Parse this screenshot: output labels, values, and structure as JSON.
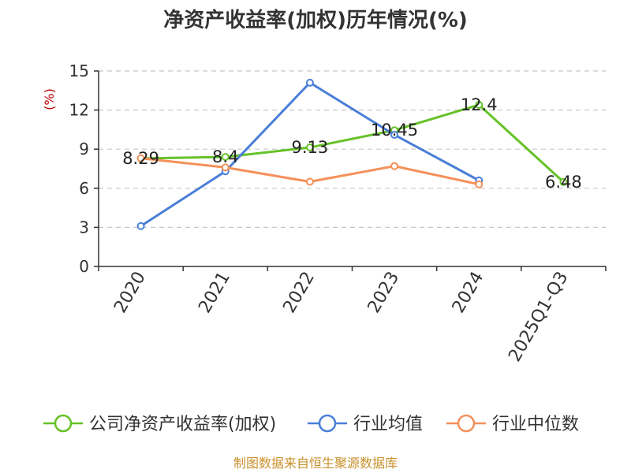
{
  "chart_data": {
    "type": "line",
    "title": "净资产收益率(加权)历年情况(%)",
    "ylabel": "(%)",
    "xlabel": "",
    "categories": [
      "2020",
      "2021",
      "2022",
      "2023",
      "2024",
      "2025Q1-Q3"
    ],
    "ylim": [
      0,
      15
    ],
    "yticks": [
      0,
      3,
      6,
      9,
      12,
      15
    ],
    "grid": true,
    "legend_position": "bottom",
    "series": [
      {
        "name": "公司净资产收益率(加权)",
        "color": "#66c228",
        "values": [
          8.29,
          8.4,
          9.13,
          10.45,
          12.4,
          6.48
        ],
        "labels": [
          "8.29",
          "8.4",
          "9.13",
          "10.45",
          "12.4",
          "6.48"
        ]
      },
      {
        "name": "行业均值",
        "color": "#4a7fd8",
        "values": [
          3.1,
          7.3,
          14.1,
          10.1,
          6.6,
          null
        ]
      },
      {
        "name": "行业中位数",
        "color": "#f5905a",
        "values": [
          8.3,
          7.6,
          6.5,
          7.7,
          6.3,
          null
        ]
      }
    ],
    "source": "制图数据来自恒生聚源数据库"
  }
}
